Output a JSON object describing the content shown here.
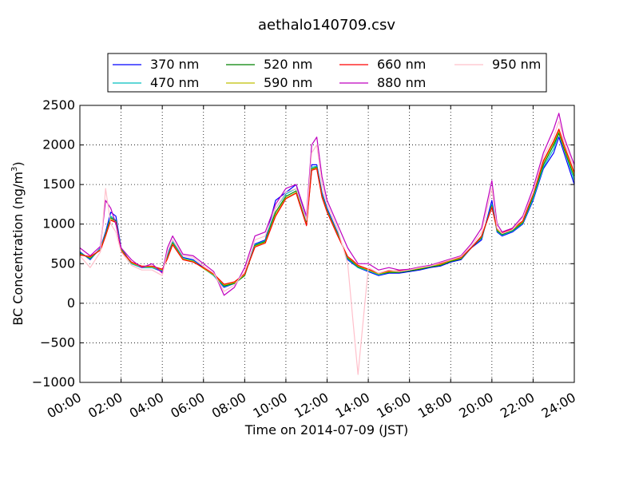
{
  "chart_data": {
    "type": "line",
    "title": "aethalo140709.csv",
    "xlabel": "Time on 2014-07-09 (JST)",
    "ylabel": "BC Concentration (ng/m",
    "ylabel_superscript": "3",
    "ylabel_close": ")",
    "ylim": [
      -1000,
      2500
    ],
    "xlim_hours": [
      0,
      24
    ],
    "grid": true,
    "legend_position": "top (above plot)",
    "x_tick_labels": [
      "00:00",
      "02:00",
      "04:00",
      "06:00",
      "08:00",
      "10:00",
      "12:00",
      "14:00",
      "16:00",
      "18:00",
      "20:00",
      "22:00",
      "24:00"
    ],
    "y_ticks": [
      -1000,
      -500,
      0,
      500,
      1000,
      1500,
      2000,
      2500
    ],
    "y_tick_labels": [
      "−1000",
      "−500",
      "0",
      "500",
      "1000",
      "1500",
      "2000",
      "2500"
    ],
    "x_hours": [
      0,
      0.5,
      1,
      1.25,
      1.5,
      1.75,
      2,
      2.5,
      3,
      3.5,
      4,
      4.25,
      4.5,
      5,
      5.5,
      6,
      6.5,
      7,
      7.5,
      8,
      8.5,
      9,
      9.5,
      10,
      10.5,
      11,
      11.25,
      11.5,
      11.75,
      12,
      12.5,
      13,
      13.25,
      13.5,
      14,
      14.5,
      15,
      15.5,
      16,
      16.5,
      17,
      17.5,
      18,
      18.5,
      19,
      19.5,
      20,
      20.25,
      20.5,
      21,
      21.5,
      22,
      22.5,
      23,
      23.25,
      23.5,
      24
    ],
    "series": [
      {
        "name": "370 nm",
        "color": "#0000ff",
        "values": [
          650,
          550,
          700,
          900,
          1150,
          1100,
          700,
          500,
          450,
          450,
          400,
          600,
          800,
          580,
          550,
          450,
          350,
          200,
          250,
          350,
          750,
          800,
          1300,
          1400,
          1500,
          1050,
          1750,
          1750,
          1400,
          1200,
          900,
          550,
          500,
          450,
          400,
          350,
          380,
          380,
          400,
          420,
          450,
          470,
          520,
          550,
          700,
          800,
          1300,
          900,
          850,
          900,
          1000,
          1300,
          1700,
          1900,
          2100,
          1900,
          1500
        ]
      },
      {
        "name": "470 nm",
        "color": "#00bfbf",
        "values": [
          640,
          560,
          690,
          880,
          1100,
          1050,
          690,
          500,
          450,
          450,
          410,
          590,
          780,
          570,
          540,
          440,
          350,
          210,
          250,
          350,
          740,
          790,
          1200,
          1380,
          1450,
          1020,
          1720,
          1730,
          1380,
          1180,
          890,
          560,
          510,
          450,
          410,
          360,
          390,
          390,
          410,
          430,
          460,
          480,
          530,
          560,
          710,
          820,
          1250,
          910,
          860,
          910,
          1010,
          1320,
          1720,
          1950,
          2150,
          1950,
          1550
        ]
      },
      {
        "name": "520 nm",
        "color": "#008000",
        "values": [
          630,
          570,
          680,
          870,
          1080,
          1040,
          680,
          510,
          460,
          460,
          420,
          580,
          760,
          560,
          530,
          440,
          360,
          220,
          250,
          350,
          730,
          780,
          1150,
          1350,
          1420,
          1000,
          1700,
          1720,
          1360,
          1170,
          880,
          570,
          520,
          460,
          420,
          370,
          390,
          390,
          410,
          430,
          460,
          480,
          530,
          560,
          700,
          830,
          1230,
          920,
          870,
          920,
          1020,
          1350,
          1750,
          2000,
          2150,
          1950,
          1600
        ]
      },
      {
        "name": "590 nm",
        "color": "#bfbf00",
        "values": [
          620,
          580,
          680,
          860,
          1060,
          1030,
          670,
          510,
          460,
          460,
          420,
          570,
          750,
          560,
          530,
          440,
          360,
          230,
          260,
          360,
          720,
          770,
          1120,
          1330,
          1400,
          990,
          1690,
          1710,
          1350,
          1160,
          870,
          580,
          530,
          470,
          420,
          370,
          400,
          400,
          420,
          440,
          470,
          490,
          540,
          570,
          700,
          840,
          1220,
          930,
          880,
          930,
          1030,
          1370,
          1780,
          2030,
          2180,
          1980,
          1620
        ]
      },
      {
        "name": "660 nm",
        "color": "#ff0000",
        "values": [
          610,
          590,
          670,
          850,
          1050,
          1020,
          660,
          520,
          470,
          470,
          430,
          560,
          740,
          550,
          520,
          450,
          370,
          240,
          270,
          370,
          710,
          760,
          1100,
          1320,
          1390,
          980,
          1680,
          1700,
          1340,
          1150,
          860,
          590,
          540,
          480,
          430,
          380,
          410,
          410,
          430,
          450,
          480,
          500,
          550,
          580,
          700,
          850,
          1210,
          940,
          890,
          940,
          1040,
          1380,
          1800,
          2050,
          2200,
          2000,
          1650
        ]
      },
      {
        "name": "880 nm",
        "color": "#bf00bf",
        "values": [
          700,
          600,
          720,
          1300,
          1200,
          1000,
          700,
          550,
          450,
          500,
          380,
          700,
          850,
          620,
          600,
          500,
          400,
          100,
          200,
          450,
          850,
          900,
          1250,
          1450,
          1500,
          1100,
          2000,
          2100,
          1600,
          1300,
          1000,
          700,
          600,
          500,
          500,
          420,
          450,
          420,
          430,
          460,
          480,
          520,
          560,
          600,
          750,
          950,
          1550,
          1000,
          900,
          950,
          1100,
          1450,
          1900,
          2200,
          2400,
          2100,
          1750
        ]
      },
      {
        "name": "950 nm",
        "color": "#ffc0cb",
        "values": [
          600,
          450,
          650,
          1450,
          1000,
          900,
          650,
          480,
          420,
          420,
          350,
          650,
          800,
          600,
          580,
          470,
          380,
          150,
          230,
          400,
          800,
          850,
          1200,
          1400,
          1450,
          1050,
          1900,
          2000,
          1500,
          1250,
          950,
          500,
          -200,
          -900,
          450,
          380,
          420,
          400,
          420,
          450,
          470,
          510,
          550,
          590,
          720,
          900,
          1450,
          950,
          880,
          930,
          1080,
          1400,
          1850,
          2100,
          2300,
          2050,
          1700
        ]
      }
    ]
  }
}
